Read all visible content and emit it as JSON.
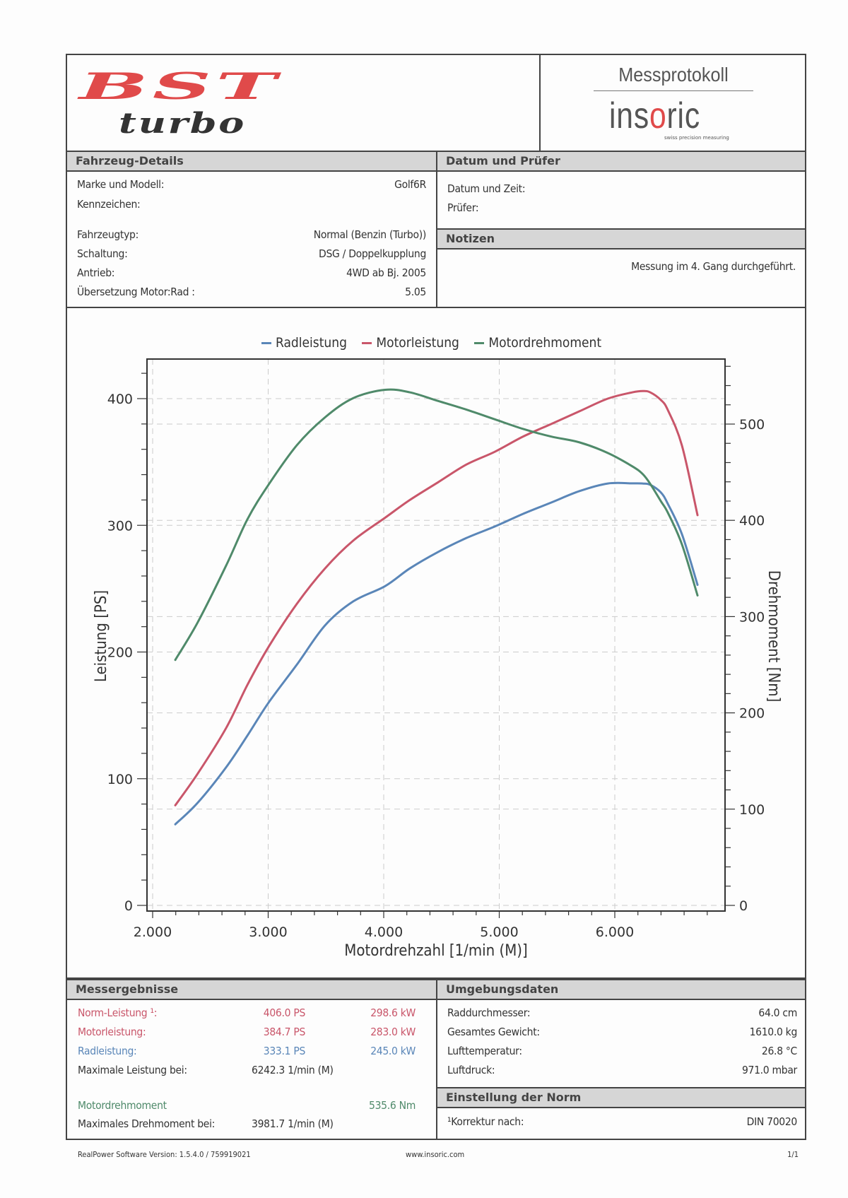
{
  "header": {
    "logo_main": "BST",
    "logo_sub": "turbo",
    "doc_title": "Messprotokoll",
    "brand_prefix": "ins",
    "brand_o": "o",
    "brand_suffix": "ric",
    "brand_tagline": "swiss precision measuring"
  },
  "vehicle": {
    "title": "Fahrzeug-Details",
    "rows": [
      {
        "label": "Marke und Modell:",
        "value": "Golf6R"
      },
      {
        "label": "Kennzeichen:",
        "value": ""
      },
      {
        "label": "Fahrzeugtyp:",
        "value": "Normal (Benzin (Turbo))"
      },
      {
        "label": "Schaltung:",
        "value": "DSG / Doppelkupplung"
      },
      {
        "label": "Antrieb:",
        "value": "4WD ab Bj. 2005"
      },
      {
        "label": "Übersetzung Motor:Rad :",
        "value": "5.05"
      }
    ]
  },
  "date_tester": {
    "title": "Datum und Prüfer",
    "rows": [
      {
        "label": "Datum und Zeit:",
        "value": ""
      },
      {
        "label": "Prüfer:",
        "value": ""
      }
    ]
  },
  "notes": {
    "title": "Notizen",
    "text": "Messung im 4. Gang durchgeführt."
  },
  "chart_data": {
    "type": "line",
    "title": "",
    "legend": [
      "Radleistung",
      "Motorleistung",
      "Motordrehmoment"
    ],
    "legend_position": "top-center",
    "xlabel": "Motordrehzahl [1/min (M)]",
    "ylabel": "Leistung [PS]",
    "y2label": "Drehmoment [Nm]",
    "xlim": [
      1950,
      6950
    ],
    "ylim": [
      0,
      430
    ],
    "y2lim": [
      0,
      570
    ],
    "xticks": [
      2000,
      3000,
      4000,
      5000,
      6000
    ],
    "xtick_labels": [
      "2.000",
      "3.000",
      "4.000",
      "5.000",
      "6.000"
    ],
    "yticks": [
      0,
      100,
      200,
      300,
      400
    ],
    "y2ticks": [
      0,
      100,
      200,
      300,
      400,
      500
    ],
    "grid": true,
    "x": [
      2196,
      2390,
      2636,
      2820,
      3003,
      3248,
      3492,
      3737,
      4012,
      4226,
      4471,
      4716,
      4960,
      5205,
      5450,
      5694,
      5939,
      6153,
      6242,
      6306,
      6398,
      6459,
      6581,
      6716
    ],
    "series": [
      {
        "name": "Radleistung",
        "axis": "left",
        "color": "#5a86b8",
        "values": [
          64,
          81,
          109,
          134,
          160,
          190,
          221,
          240,
          252,
          266,
          279,
          290,
          299,
          309,
          318,
          327,
          333,
          333.1,
          333,
          332,
          326,
          317,
          293,
          253
        ]
      },
      {
        "name": "Motorleistung",
        "axis": "left",
        "color": "#c9566a",
        "values": [
          79,
          104,
          140,
          174,
          204,
          238,
          266,
          288,
          306,
          320,
          334,
          348,
          358,
          370,
          380,
          390,
          400,
          405,
          406,
          405,
          399,
          391,
          363,
          308
        ]
      },
      {
        "name": "Motordrehmoment",
        "axis": "right",
        "color": "#4f8a6a",
        "values": [
          255,
          294,
          353,
          401,
          437,
          478,
          507,
          527,
          535.6,
          533,
          524,
          515,
          505,
          495,
          487,
          481,
          470,
          456,
          448,
          438,
          420,
          408,
          375,
          322
        ]
      }
    ]
  },
  "results": {
    "title": "Messergebnisse",
    "rows": [
      {
        "label": "Norm-Leistung ¹:",
        "ps": "406.0 PS",
        "kw": "298.6 kW",
        "color": "#c9566a"
      },
      {
        "label": "Motorleistung:",
        "ps": "384.7 PS",
        "kw": "283.0 kW",
        "color": "#c9566a"
      },
      {
        "label": "Radleistung:",
        "ps": "333.1 PS",
        "kw": "245.0 kW",
        "color": "#5a86b8"
      }
    ],
    "max_power_label": "Maximale Leistung bei:",
    "max_power_value": "6242.3 1/min (M)",
    "torque_label": "Motordrehmoment",
    "torque_value": "535.6 Nm",
    "torque_color": "#4f8a6a",
    "max_torque_label": "Maximales Drehmoment bei:",
    "max_torque_value": "3981.7 1/min (M)"
  },
  "environment": {
    "title": "Umgebungsdaten",
    "rows": [
      {
        "label": "Raddurchmesser:",
        "value": "64.0 cm"
      },
      {
        "label": "Gesamtes Gewicht:",
        "value": "1610.0 kg"
      },
      {
        "label": "Lufttemperatur:",
        "value": "26.8 °C"
      },
      {
        "label": "Luftdruck:",
        "value": "971.0 mbar"
      }
    ]
  },
  "norm": {
    "title": "Einstellung der Norm",
    "label": "¹Korrektur nach:",
    "value": "DIN 70020"
  },
  "footer": {
    "software": "RealPower Software Version: 1.5.4.0 / 759919021",
    "website": "www.insoric.com",
    "page": "1/1"
  }
}
